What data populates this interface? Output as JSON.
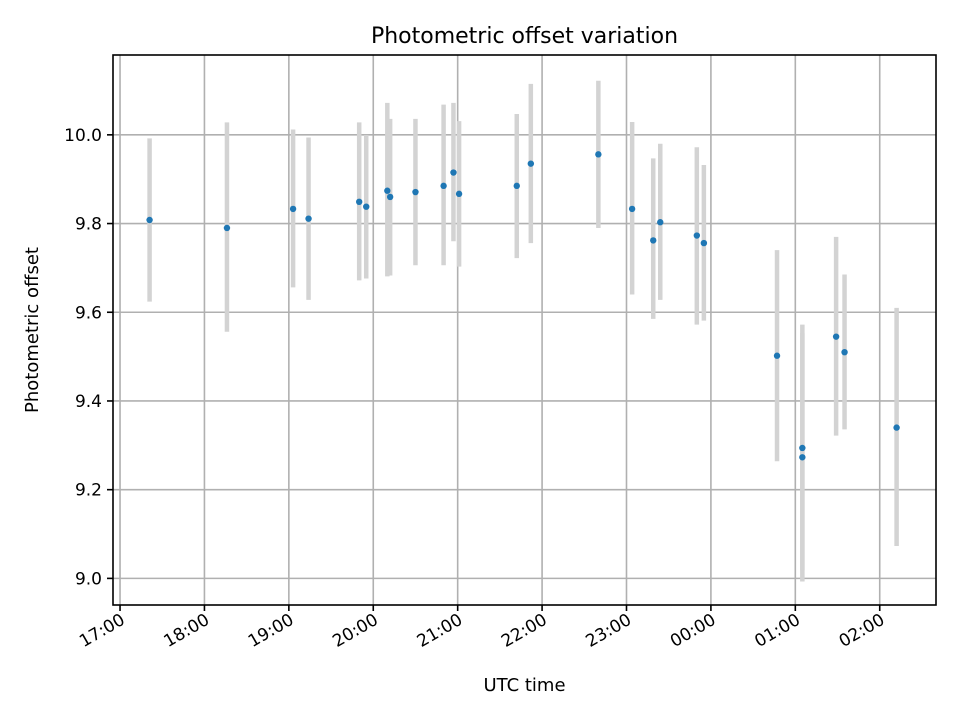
{
  "chart_data": {
    "type": "scatter",
    "title": "Photometric offset variation",
    "xlabel": "UTC time",
    "ylabel": "Photometric offset",
    "x_ticks": [
      "17:00",
      "18:00",
      "19:00",
      "20:00",
      "21:00",
      "22:00",
      "23:00",
      "00:00",
      "01:00",
      "02:00"
    ],
    "x_tick_hours": [
      17,
      18,
      19,
      20,
      21,
      22,
      23,
      24,
      25,
      26
    ],
    "y_ticks": [
      "9.0",
      "9.2",
      "9.4",
      "9.6",
      "9.8",
      "10.0"
    ],
    "y_tick_values": [
      9.0,
      9.2,
      9.4,
      9.6,
      9.8,
      10.0
    ],
    "xlim": [
      "16:55",
      "02:40"
    ],
    "ylim": [
      8.94,
      10.18
    ],
    "grid": true,
    "colors": {
      "point": "#1f77b4",
      "errorbar": "#d3d3d3",
      "grid": "#b0b0b0"
    },
    "points": [
      {
        "time": "17:21",
        "y": 9.808,
        "err_low": 9.624,
        "err_high": 9.992
      },
      {
        "time": "18:16",
        "y": 9.79,
        "err_low": 9.556,
        "err_high": 10.028
      },
      {
        "time": "19:03",
        "y": 9.833,
        "err_low": 9.656,
        "err_high": 10.012
      },
      {
        "time": "19:14",
        "y": 9.811,
        "err_low": 9.628,
        "err_high": 9.994
      },
      {
        "time": "19:50",
        "y": 9.849,
        "err_low": 9.672,
        "err_high": 10.028
      },
      {
        "time": "19:55",
        "y": 9.838,
        "err_low": 9.676,
        "err_high": 10.0
      },
      {
        "time": "20:10",
        "y": 9.874,
        "err_low": 9.681,
        "err_high": 10.072
      },
      {
        "time": "20:12",
        "y": 9.86,
        "err_low": 9.683,
        "err_high": 10.036
      },
      {
        "time": "20:30",
        "y": 9.871,
        "err_low": 9.706,
        "err_high": 10.036
      },
      {
        "time": "20:50",
        "y": 9.885,
        "err_low": 9.706,
        "err_high": 10.068
      },
      {
        "time": "20:57",
        "y": 9.915,
        "err_low": 9.76,
        "err_high": 10.072
      },
      {
        "time": "21:01",
        "y": 9.867,
        "err_low": 9.703,
        "err_high": 10.031
      },
      {
        "time": "21:42",
        "y": 9.885,
        "err_low": 9.722,
        "err_high": 10.047
      },
      {
        "time": "21:52",
        "y": 9.935,
        "err_low": 9.756,
        "err_high": 10.115
      },
      {
        "time": "22:40",
        "y": 9.956,
        "err_low": 9.79,
        "err_high": 10.122
      },
      {
        "time": "23:04",
        "y": 9.833,
        "err_low": 9.64,
        "err_high": 10.029
      },
      {
        "time": "23:19",
        "y": 9.762,
        "err_low": 9.585,
        "err_high": 9.947
      },
      {
        "time": "23:24",
        "y": 9.803,
        "err_low": 9.628,
        "err_high": 9.98
      },
      {
        "time": "23:50",
        "y": 9.773,
        "err_low": 9.572,
        "err_high": 9.972
      },
      {
        "time": "23:55",
        "y": 9.756,
        "err_low": 9.581,
        "err_high": 9.932
      },
      {
        "time": "00:47",
        "y": 9.502,
        "err_low": 9.264,
        "err_high": 9.74
      },
      {
        "time": "01:05",
        "y": 9.294,
        "err_low": 9.018,
        "err_high": 9.572
      },
      {
        "time": "01:05",
        "y": 9.273,
        "err_low": 8.993,
        "err_high": 9.553
      },
      {
        "time": "01:29",
        "y": 9.545,
        "err_low": 9.322,
        "err_high": 9.77
      },
      {
        "time": "01:35",
        "y": 9.51,
        "err_low": 9.336,
        "err_high": 9.685
      },
      {
        "time": "02:12",
        "y": 9.34,
        "err_low": 9.073,
        "err_high": 9.61
      }
    ]
  }
}
